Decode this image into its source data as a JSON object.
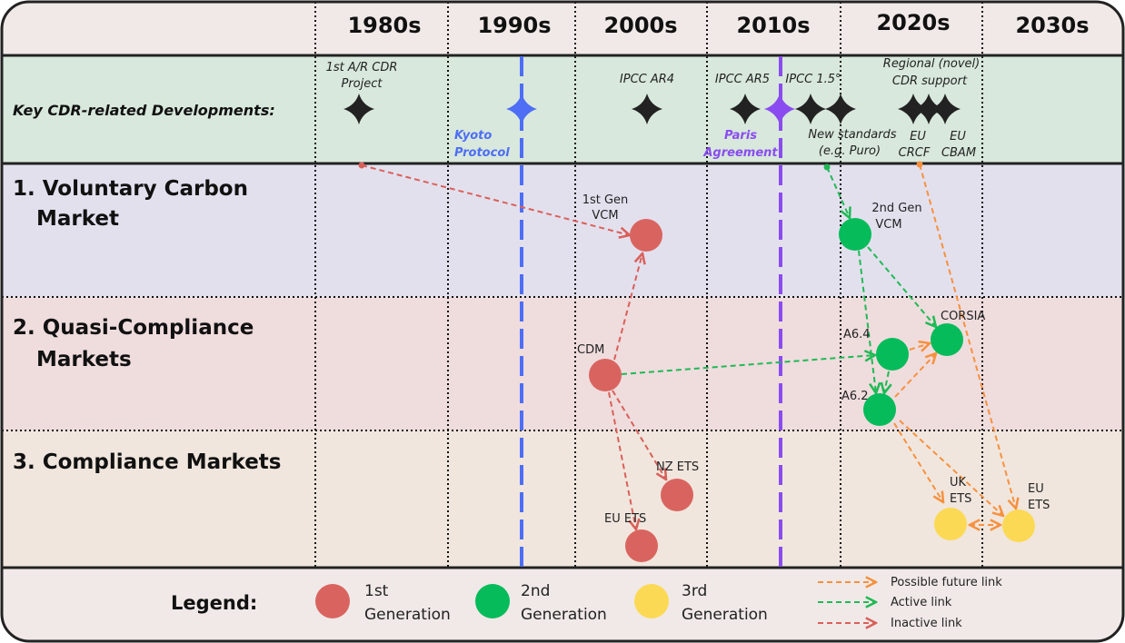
{
  "decades": [
    "1980s",
    "1990s",
    "2000s",
    "2010s",
    "2020s",
    "2030s"
  ],
  "rows": {
    "developments": "Key CDR-related Developments:",
    "voluntary_1": "1. Voluntary Carbon",
    "voluntary_2": "Market",
    "quasi_1": "2. Quasi-Compliance",
    "quasi_2": "Markets",
    "compliance": "3. Compliance Markets"
  },
  "events": {
    "ar_cdr_1": "1st A/R CDR",
    "ar_cdr_2": "Project",
    "kyoto_1": "Kyoto",
    "kyoto_2": "Protocol",
    "ar4": "IPCC AR4",
    "ar5": "IPCC AR5",
    "paris_1": "Paris",
    "paris_2": "Agreement",
    "ipcc15": "IPCC 1.5°",
    "standards_1": "New standards",
    "standards_2": "(e.g. Puro)",
    "regional_1": "Regional (novel)",
    "regional_2": "CDR support",
    "crcf_1": "EU",
    "crcf_2": "CRCF",
    "cbam_1": "EU",
    "cbam_2": "CBAM"
  },
  "nodes": {
    "vcm1_1": "1st Gen",
    "vcm1_2": "VCM",
    "vcm2_1": "2nd Gen",
    "vcm2_2": "VCM",
    "cdm": "CDM",
    "a64": "A6.4",
    "a62": "A6.2",
    "corsia": "CORSIA",
    "nzets": "NZ ETS",
    "euets1": "EU ETS",
    "ukets_1": "UK",
    "ukets_2": "ETS",
    "euets3_1": "EU",
    "euets3_2": "ETS"
  },
  "legend": {
    "title": "Legend:",
    "gen1_1": "1st",
    "gen1_2": "Generation",
    "gen2_1": "2nd",
    "gen2_2": "Generation",
    "gen3_1": "3rd",
    "gen3_2": "Generation",
    "future": "Possible future link",
    "active": "Active link",
    "inactive": "Inactive link"
  },
  "colors": {
    "gen1": "#d9645f",
    "gen2": "#05bb5a",
    "gen3": "#fcd955",
    "future_link": "#f6913f",
    "active_link": "#1fba55",
    "inactive_link": "#d9605a",
    "kyoto": "#4d6ef5",
    "paris": "#8a4cf0"
  }
}
